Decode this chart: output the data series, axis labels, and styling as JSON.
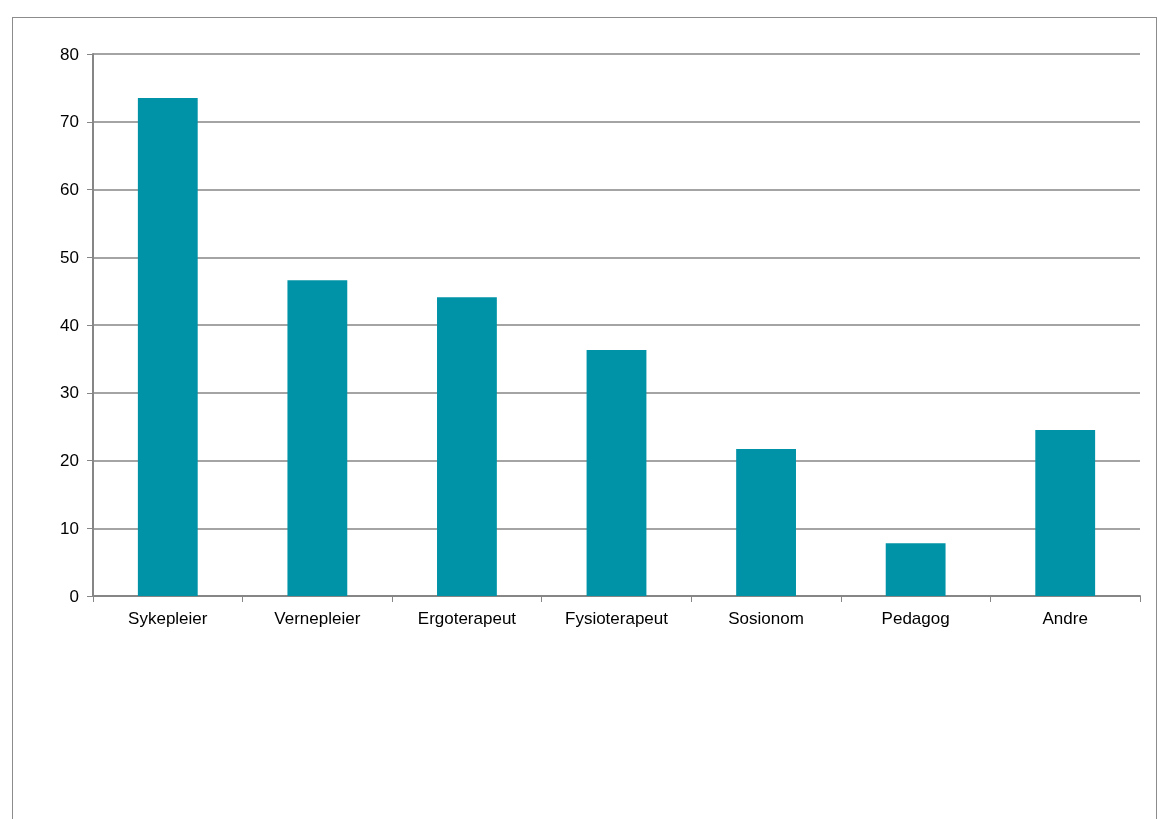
{
  "chart_data": {
    "type": "bar",
    "categories": [
      "Sykepleier",
      "Vernepleier",
      "Ergoterapeut",
      "Fysioterapeut",
      "Sosionom",
      "Pedagog",
      "Andre"
    ],
    "values": [
      73.5,
      46.6,
      44.1,
      36.3,
      21.7,
      7.8,
      24.5
    ],
    "color": "#0093a7",
    "ylim": [
      0,
      80
    ],
    "yticks": [
      0,
      10,
      20,
      30,
      40,
      50,
      60,
      70,
      80
    ],
    "grid": "y"
  }
}
